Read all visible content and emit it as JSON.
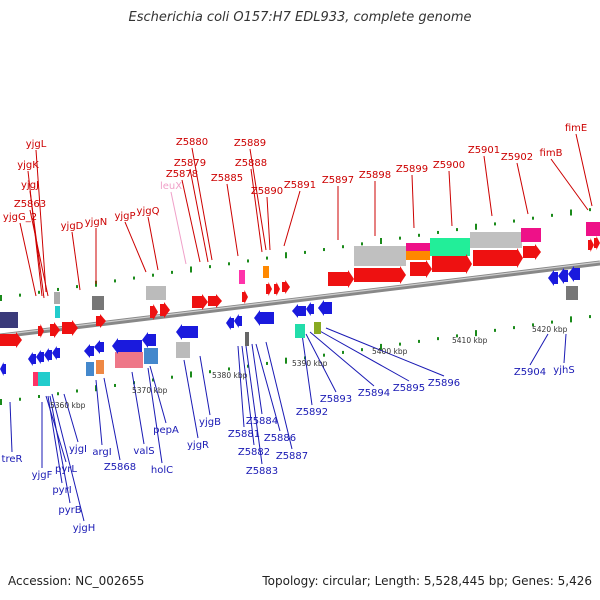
{
  "title": "Escherichia coli O157:H7 EDL933, complete genome",
  "footer": {
    "accession": "Accession: NC_002655",
    "summary": "Topology: circular; Length: 5,528,445 bp; Genes: 5,426"
  },
  "colors": {
    "forward": "#ee1111",
    "reverse": "#1a1add",
    "forward_label": "#cc0000",
    "reverse_label": "#1a1ab4",
    "pseudo_label": "#f0a0c8",
    "backbone": "#888888",
    "tick": "#1a8a1a"
  },
  "scale_labels": [
    "5360 kbp",
    "5370 kbp",
    "5380 kbp",
    "5390 kbp",
    "5400 kbp",
    "5410 kbp",
    "5420 kbp"
  ],
  "forward_genes": [
    "yjgL",
    "yjgK",
    "yjgJ",
    "Z5863",
    "yjgG_2",
    "yjgD",
    "yjgN",
    "yjgP",
    "yjgQ",
    "leuX",
    "Z5878",
    "Z5879",
    "Z5880",
    "Z5885",
    "Z5888",
    "Z5889",
    "Z5890",
    "Z5891",
    "Z5897",
    "Z5898",
    "Z5899",
    "Z5900",
    "Z5901",
    "Z5902",
    "fimB",
    "fimE"
  ],
  "reverse_genes": [
    "treR",
    "yjgF",
    "pyrL",
    "pyrI",
    "pyrB",
    "yjgH",
    "yjgI",
    "argI",
    "Z5868",
    "valS",
    "holC",
    "pepA",
    "yjgR",
    "yjgB",
    "Z5881",
    "Z5882",
    "Z5883",
    "Z5884",
    "Z5886",
    "Z5887",
    "Z5892",
    "Z5893",
    "Z5894",
    "Z5895",
    "Z5896",
    "Z5904",
    "yjhS"
  ]
}
